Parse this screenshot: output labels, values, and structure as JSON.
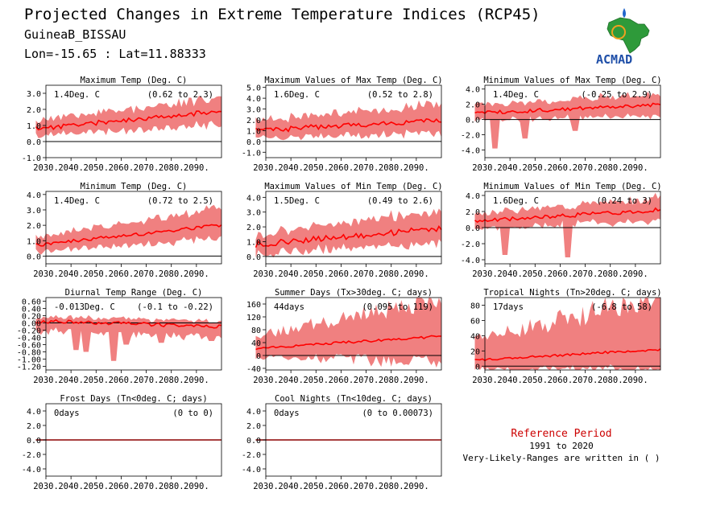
{
  "header": {
    "title": "Projected Changes in Extreme Temperature Indices (RCP45)",
    "country": "GuineaB_BISSAU",
    "location": "Lon=-15.65 : Lat=11.88333"
  },
  "logo": {
    "text": "ACMAD"
  },
  "reference": {
    "label": "Reference Period",
    "years": "1991 to 2020",
    "note": "Very-Likely-Ranges are written in ( )"
  },
  "colors": {
    "band": "#f08080",
    "line": "#ff0000",
    "zero": "#000000",
    "accent": "#cc0000"
  },
  "chart_data": [
    {
      "type": "area",
      "title": "Maximum Temp (Deg. C)",
      "mean_label": "1.4Deg. C",
      "range_label": "(0.62 to 2.3)",
      "x_ticks": [
        "2030.",
        "2040.",
        "2050.",
        "2060.",
        "2070.",
        "2080.",
        "2090."
      ],
      "y_ticks": [
        "-1.0",
        "0.0",
        "1.0",
        "2.0",
        "3.0"
      ],
      "ylim": [
        -1.0,
        3.5
      ],
      "x_range": [
        2030,
        2100
      ],
      "series": [
        {
          "start": 0.8,
          "end": 1.9,
          "noise": 0.15,
          "spread_lo": 0.45,
          "spread_hi": 0.5,
          "growth": 0.75,
          "seed": 11,
          "dip": []
        }
      ]
    },
    {
      "type": "area",
      "title": "Maximum Values of Max Temp (Deg. C)",
      "mean_label": "1.6Deg. C",
      "range_label": "(0.52 to 2.8)",
      "x_ticks": [
        "2030.",
        "2040.",
        "2050.",
        "2060.",
        "2070.",
        "2080.",
        "2090."
      ],
      "y_ticks": [
        "-1.0",
        "0.0",
        "1.0",
        "2.0",
        "3.0",
        "4.0",
        "5.0"
      ],
      "ylim": [
        -1.5,
        5.2
      ],
      "x_range": [
        2030,
        2100
      ],
      "series": [
        {
          "start": 1.0,
          "end": 2.0,
          "noise": 0.25,
          "spread_lo": 0.7,
          "spread_hi": 0.9,
          "growth": 0.7,
          "seed": 23,
          "dip": []
        }
      ]
    },
    {
      "type": "area",
      "title": "Minimum Values of Max Temp (Deg. C)",
      "mean_label": "1.4Deg. C",
      "range_label": "(-0.25 to 2.9)",
      "x_ticks": [
        "2030.",
        "2040.",
        "2050.",
        "2060.",
        "2070.",
        "2080.",
        "2090."
      ],
      "y_ticks": [
        "-4.0",
        "-2.0",
        "0.0",
        "2.0",
        "4.0"
      ],
      "ylim": [
        -5.0,
        4.5
      ],
      "x_range": [
        2030,
        2100
      ],
      "series": [
        {
          "start": 0.8,
          "end": 2.0,
          "noise": 0.25,
          "spread_lo": 0.9,
          "spread_hi": 1.0,
          "growth": 0.5,
          "seed": 37,
          "dip": [
            [
              2034,
              -3.8
            ],
            [
              2046,
              -2.5
            ],
            [
              2066,
              -1.5
            ]
          ]
        }
      ]
    },
    {
      "type": "area",
      "title": "Minimum Temp (Deg. C)",
      "mean_label": "1.4Deg. C",
      "range_label": "(0.72 to 2.5)",
      "x_ticks": [
        "2030.",
        "2040.",
        "2050.",
        "2060.",
        "2070.",
        "2080.",
        "2090."
      ],
      "y_ticks": [
        "0.0",
        "1.0",
        "2.0",
        "3.0",
        "4.0"
      ],
      "ylim": [
        -0.5,
        4.2
      ],
      "x_range": [
        2030,
        2100
      ],
      "series": [
        {
          "start": 0.7,
          "end": 2.0,
          "noise": 0.12,
          "spread_lo": 0.45,
          "spread_hi": 0.55,
          "growth": 0.9,
          "seed": 41,
          "dip": []
        }
      ]
    },
    {
      "type": "area",
      "title": "Maximum Values of Min Temp (Deg. C)",
      "mean_label": "1.5Deg. C",
      "range_label": "(0.49 to 2.6)",
      "x_ticks": [
        "2030.",
        "2040.",
        "2050.",
        "2060.",
        "2070.",
        "2080.",
        "2090."
      ],
      "y_ticks": [
        "0.0",
        "1.0",
        "2.0",
        "3.0",
        "4.0"
      ],
      "ylim": [
        -0.5,
        4.4
      ],
      "x_range": [
        2030,
        2100
      ],
      "series": [
        {
          "start": 0.8,
          "end": 1.9,
          "noise": 0.2,
          "spread_lo": 0.6,
          "spread_hi": 0.7,
          "growth": 0.7,
          "seed": 53,
          "dip": []
        }
      ]
    },
    {
      "type": "area",
      "title": "Minimum Values of Min Temp (Deg. C)",
      "mean_label": "1.6Deg. C",
      "range_label": "(0.24 to 3)",
      "x_ticks": [
        "2030.",
        "2040.",
        "2050.",
        "2060.",
        "2070.",
        "2080.",
        "2090."
      ],
      "y_ticks": [
        "-4.0",
        "-2.0",
        "0.0",
        "2.0",
        "4.0"
      ],
      "ylim": [
        -4.5,
        4.5
      ],
      "x_range": [
        2030,
        2100
      ],
      "series": [
        {
          "start": 0.8,
          "end": 2.2,
          "noise": 0.25,
          "spread_lo": 0.9,
          "spread_hi": 1.0,
          "growth": 0.5,
          "seed": 67,
          "dip": [
            [
              2038,
              -3.4
            ],
            [
              2063,
              -3.7
            ]
          ]
        }
      ]
    },
    {
      "type": "area",
      "title": "Diurnal Temp Range (Deg. C)",
      "mean_label": "-0.013Deg. C",
      "range_label": "(-0.1 to -0.22)",
      "x_ticks": [
        "2030.",
        "2040.",
        "2050.",
        "2060.",
        "2070.",
        "2080.",
        "2090."
      ],
      "y_ticks": [
        "-1.20",
        "-1.00",
        "-0.80",
        "-0.60",
        "-0.40",
        "-0.20",
        "0.00",
        "0.20",
        "0.40",
        "0.60"
      ],
      "ylim": [
        -1.3,
        0.7
      ],
      "x_range": [
        2030,
        2100
      ],
      "series": [
        {
          "start": 0.05,
          "end": -0.1,
          "noise": 0.05,
          "spread_lo": 0.25,
          "spread_hi": 0.12,
          "growth": 0.3,
          "seed": 71,
          "dip": [
            [
              2042,
              -0.75
            ],
            [
              2046,
              -0.8
            ],
            [
              2057,
              -1.05
            ],
            [
              2062,
              -0.6
            ],
            [
              2076,
              -0.55
            ],
            [
              2096,
              -0.5
            ]
          ]
        }
      ]
    },
    {
      "type": "area",
      "title": "Summer Days (Tx>30deg. C; days)",
      "mean_label": "44days",
      "range_label": "(0.095 to 119)",
      "x_ticks": [
        "2030.",
        "2040.",
        "2050.",
        "2060.",
        "2070.",
        "2080.",
        "2090."
      ],
      "y_ticks": [
        "-40",
        "0",
        "40",
        "80",
        "120",
        "160"
      ],
      "ylim": [
        -45,
        180
      ],
      "x_range": [
        2030,
        2100
      ],
      "series": [
        {
          "start": 22,
          "end": 60,
          "noise": 4,
          "spread_lo": 28,
          "spread_hi": 40,
          "growth": 1.8,
          "seed": 83,
          "dip": []
        }
      ]
    },
    {
      "type": "area",
      "title": "Tropical Nights (Tn>20deg. C; days)",
      "mean_label": "17days",
      "range_label": "(-6.8 to 58)",
      "x_ticks": [
        "2030.",
        "2040.",
        "2050.",
        "2060.",
        "2070.",
        "2080.",
        "2090."
      ],
      "y_ticks": [
        "0",
        "20",
        "40",
        "60",
        "80"
      ],
      "ylim": [
        -5,
        90
      ],
      "x_range": [
        2030,
        2100
      ],
      "series": [
        {
          "start": 8,
          "end": 22,
          "noise": 1.5,
          "spread_lo": 12,
          "spread_hi": 28,
          "growth": 1.4,
          "seed": 97,
          "dip": []
        }
      ]
    },
    {
      "type": "area",
      "title": "Frost Days (Tn<0deg. C; days)",
      "mean_label": "0days",
      "range_label": "(0 to 0)",
      "x_ticks": [
        "2030.",
        "2040.",
        "2050.",
        "2060.",
        "2070.",
        "2080.",
        "2090."
      ],
      "y_ticks": [
        "-4.0",
        "-2.0",
        "0.0",
        "2.0",
        "4.0"
      ],
      "ylim": [
        -5,
        5
      ],
      "x_range": [
        2030,
        2100
      ],
      "series": [
        {
          "start": 0,
          "end": 0,
          "noise": 0,
          "spread_lo": 0,
          "spread_hi": 0,
          "growth": 0,
          "seed": 1,
          "dip": []
        }
      ]
    },
    {
      "type": "area",
      "title": "Cool Nights (Tn<10deg. C; days)",
      "mean_label": "0days",
      "range_label": "(0 to 0.00073)",
      "x_ticks": [
        "2030.",
        "2040.",
        "2050.",
        "2060.",
        "2070.",
        "2080.",
        "2090."
      ],
      "y_ticks": [
        "-4.0",
        "-2.0",
        "0.0",
        "2.0",
        "4.0"
      ],
      "ylim": [
        -5,
        5
      ],
      "x_range": [
        2030,
        2100
      ],
      "series": [
        {
          "start": 0,
          "end": 0,
          "noise": 0,
          "spread_lo": 0,
          "spread_hi": 0,
          "growth": 0,
          "seed": 2,
          "dip": []
        }
      ]
    }
  ]
}
